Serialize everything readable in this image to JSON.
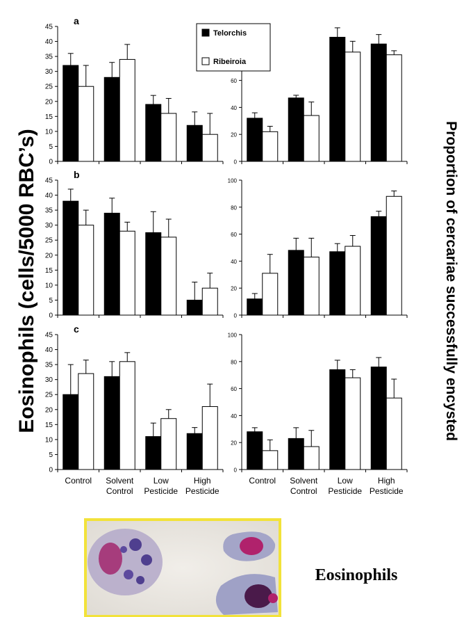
{
  "figure": {
    "y_axis_title": "Eosinophils (cells/5000 RBC’s)",
    "y2_axis_title": "Proportion of cercariae successfully encysted",
    "categories": [
      [
        "Control"
      ],
      [
        "Solvent",
        "Control"
      ],
      [
        "Low",
        "Pesticide"
      ],
      [
        "High",
        "Pesticide"
      ]
    ],
    "legend": [
      {
        "name": "Telorchis",
        "color": "#000000"
      },
      {
        "name": "Ribeiroia",
        "color": "#ffffff"
      }
    ],
    "micrograph_label": "Eosinophils",
    "micrograph_border_color": "#f2e23a"
  },
  "chart_data": [
    {
      "panel": "a",
      "type": "bar",
      "axis": "Eosinophils",
      "ylim": [
        0,
        45
      ],
      "yticks": [
        0,
        5,
        10,
        15,
        20,
        25,
        30,
        35,
        40,
        45
      ],
      "categories": [
        "Control",
        "Solvent Control",
        "Low Pesticide",
        "High Pesticide"
      ],
      "series": [
        {
          "name": "Telorchis",
          "values": [
            32,
            28,
            19,
            12
          ],
          "errors": [
            4,
            5,
            3,
            4.5
          ]
        },
        {
          "name": "Ribeiroia",
          "values": [
            25,
            34,
            16,
            9
          ],
          "errors": [
            7,
            5,
            5,
            7
          ]
        }
      ]
    },
    {
      "panel": "a",
      "type": "bar",
      "axis": "Proportion of cercariae successfully encysted",
      "ylim": [
        0,
        100
      ],
      "yticks": [
        0,
        20,
        40,
        60,
        80,
        100
      ],
      "categories": [
        "Control",
        "Solvent Control",
        "Low Pesticide",
        "High Pesticide"
      ],
      "series": [
        {
          "name": "Telorchis",
          "values": [
            32,
            47,
            92,
            87
          ],
          "errors": [
            4,
            2,
            7,
            7
          ]
        },
        {
          "name": "Ribeiroia",
          "values": [
            22,
            34,
            81,
            79
          ],
          "errors": [
            4,
            10,
            8,
            3
          ]
        }
      ]
    },
    {
      "panel": "b",
      "type": "bar",
      "axis": "Eosinophils",
      "ylim": [
        0,
        45
      ],
      "yticks": [
        0,
        5,
        10,
        15,
        20,
        25,
        30,
        35,
        40,
        45
      ],
      "categories": [
        "Control",
        "Solvent Control",
        "Low Pesticide",
        "High Pesticide"
      ],
      "series": [
        {
          "name": "Telorchis",
          "values": [
            38,
            34,
            27.5,
            5
          ],
          "errors": [
            4,
            5,
            7,
            6
          ]
        },
        {
          "name": "Ribeiroia",
          "values": [
            30,
            28,
            26,
            9
          ],
          "errors": [
            5,
            3,
            6,
            5
          ]
        }
      ]
    },
    {
      "panel": "b",
      "type": "bar",
      "axis": "Proportion of cercariae successfully encysted",
      "ylim": [
        0,
        100
      ],
      "yticks": [
        0,
        20,
        40,
        60,
        80,
        100
      ],
      "categories": [
        "Control",
        "Solvent Control",
        "Low Pesticide",
        "High Pesticide"
      ],
      "series": [
        {
          "name": "Telorchis",
          "values": [
            12,
            48,
            47,
            73
          ],
          "errors": [
            4,
            9,
            6,
            4
          ]
        },
        {
          "name": "Ribeiroia",
          "values": [
            31,
            43,
            51,
            88
          ],
          "errors": [
            14,
            14,
            8,
            4
          ]
        }
      ]
    },
    {
      "panel": "c",
      "type": "bar",
      "axis": "Eosinophils",
      "ylim": [
        0,
        45
      ],
      "yticks": [
        0,
        5,
        10,
        15,
        20,
        25,
        30,
        35,
        40,
        45
      ],
      "categories": [
        "Control",
        "Solvent Control",
        "Low Pesticide",
        "High Pesticide"
      ],
      "series": [
        {
          "name": "Telorchis",
          "values": [
            25,
            31,
            11,
            12
          ],
          "errors": [
            10,
            5,
            4.5,
            2
          ]
        },
        {
          "name": "Ribeiroia",
          "values": [
            32,
            36,
            17,
            21
          ],
          "errors": [
            4.5,
            3,
            3,
            7.5
          ]
        }
      ]
    },
    {
      "panel": "c",
      "type": "bar",
      "axis": "Proportion of cercariae successfully encysted",
      "ylim": [
        0,
        100
      ],
      "yticks": [
        0,
        20,
        40,
        60,
        80,
        100
      ],
      "categories": [
        "Control",
        "Solvent Control",
        "Low Pesticide",
        "High Pesticide"
      ],
      "series": [
        {
          "name": "Telorchis",
          "values": [
            28,
            23,
            74,
            76
          ],
          "errors": [
            3,
            8,
            7,
            7
          ]
        },
        {
          "name": "Ribeiroia",
          "values": [
            14,
            17,
            68,
            53
          ],
          "errors": [
            8,
            12,
            6,
            14
          ]
        }
      ]
    }
  ]
}
